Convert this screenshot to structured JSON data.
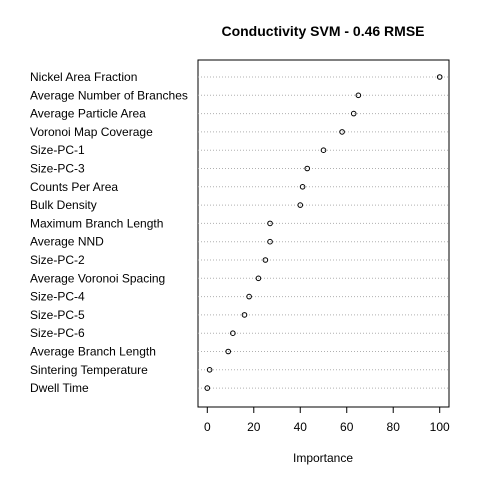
{
  "chart_data": {
    "type": "scatter",
    "title": "Conductivity SVM - 0.46 RMSE",
    "xlabel": "Importance",
    "ylabel": "",
    "xlim": [
      -4,
      104
    ],
    "xticks": [
      0,
      20,
      40,
      60,
      80,
      100
    ],
    "grid": "horizontal dotted",
    "categories": [
      "Nickel Area Fraction",
      "Average Number of Branches",
      "Average Particle Area",
      "Voronoi Map Coverage",
      "Size-PC-1",
      "Size-PC-3",
      "Counts Per Area",
      "Bulk Density",
      "Maximum Branch Length",
      "Average NND",
      "Size-PC-2",
      "Average Voronoi Spacing",
      "Size-PC-4",
      "Size-PC-5",
      "Size-PC-6",
      "Average Branch Length",
      "Sintering Temperature",
      "Dwell Time"
    ],
    "values": [
      100,
      65,
      63,
      58,
      50,
      43,
      41,
      40,
      27,
      27,
      25,
      22,
      18,
      16,
      11,
      9,
      1,
      0
    ]
  }
}
